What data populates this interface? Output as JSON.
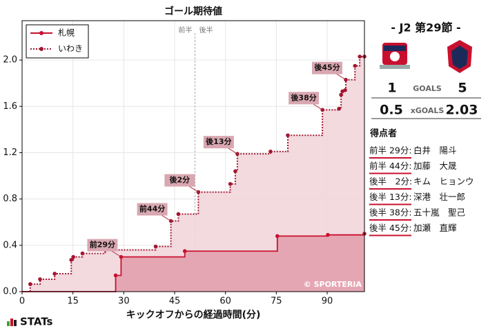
{
  "chart_data": {
    "type": "step",
    "title": "ゴール期待値",
    "x_label": "キックオフからの経過時間(分)",
    "xlim": [
      0,
      101
    ],
    "ylim": [
      0,
      2.34
    ],
    "xticks": [
      0,
      15,
      30,
      45,
      60,
      75,
      90
    ],
    "yticks": [
      {
        "value": 0,
        "label": "0.0"
      },
      0.4,
      0.8,
      1.2,
      1.6,
      {
        "value": 2,
        "label": "2.0"
      }
    ],
    "grid": true,
    "legend": "upper left",
    "halftime": {
      "x": 51,
      "labels": [
        "前半",
        "後半"
      ]
    },
    "credit": "© SPORTERIA",
    "series": [
      {
        "name": "札幌",
        "color": "#c8102e",
        "fill": "#e3a0ae",
        "dash": false,
        "x": [
          27.6,
          29.2,
          48,
          75.3,
          90.2,
          101
        ],
        "values": [
          0.14,
          0.3,
          0.35,
          0.48,
          0.49,
          0.5
        ]
      },
      {
        "name": "いわき",
        "color": "#a3162f",
        "fill": "#f1d6db",
        "dash": true,
        "x": [
          2.4,
          5.3,
          9.6,
          14.5,
          15.1,
          17.8,
          24.5,
          39.4,
          43.9,
          46.1,
          52,
          61.4,
          62.9,
          63.5,
          73.3,
          78.4,
          88.6,
          93.5,
          94.1,
          94.5,
          95.3,
          95.5,
          98.2,
          99.6,
          101
        ],
        "values": [
          0.065,
          0.107,
          0.155,
          0.274,
          0.3,
          0.33,
          0.36,
          0.39,
          0.61,
          0.67,
          0.86,
          0.93,
          1.04,
          1.19,
          1.21,
          1.35,
          1.57,
          1.58,
          1.7,
          1.73,
          1.74,
          1.83,
          1.95,
          2.03,
          2.03
        ]
      }
    ],
    "annotations": [
      {
        "text": "前29分",
        "x": 29.2,
        "y": 0.3
      },
      {
        "text": "前44分",
        "x": 43.9,
        "y": 0.61
      },
      {
        "text": "後2分",
        "x": 52,
        "y": 0.86
      },
      {
        "text": "後13分",
        "x": 63.5,
        "y": 1.19
      },
      {
        "text": "後38分",
        "x": 88.6,
        "y": 1.57
      },
      {
        "text": "後45分",
        "x": 95.5,
        "y": 1.83
      }
    ]
  },
  "match": {
    "title": "- J2 第29節 -",
    "home_goals": "1",
    "away_goals": "5",
    "goals_label": "GOALS",
    "home_xg": "0.5",
    "away_xg": "2.03",
    "xg_label": "xGOALS",
    "scorers_title": "得点者",
    "scorers": [
      {
        "time": "前半 29分:",
        "name": "白井　陽斗"
      },
      {
        "time": "前半 44分:",
        "name": "加藤　大晟"
      },
      {
        "time": "後半　2分:",
        "name": "キム　ヒョンウ"
      },
      {
        "time": "後半 13分:",
        "name": "深港　壮一郎"
      },
      {
        "time": "後半 38分:",
        "name": "五十嵐　聖己"
      },
      {
        "time": "後半 45分:",
        "name": "加瀬　直輝"
      }
    ]
  },
  "brand": "STATs"
}
